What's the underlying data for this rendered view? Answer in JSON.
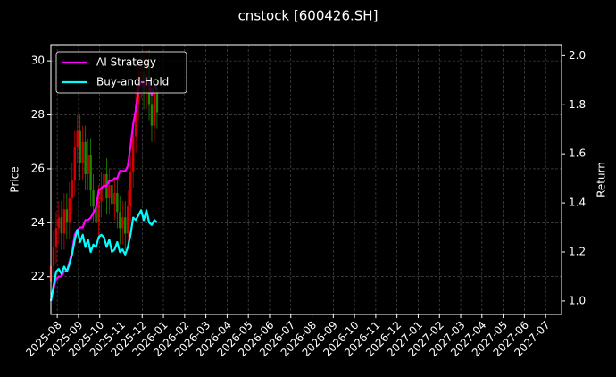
{
  "chart_data": {
    "type": "candlestick",
    "title": "cnstock [600426.SH]",
    "ylabel": "Price",
    "y2label": "Return",
    "x": [
      -0.3,
      -0.175,
      -0.05,
      0.075,
      0.2,
      0.325,
      0.45,
      0.575,
      0.7,
      0.825,
      0.95,
      1.075,
      1.2,
      1.325,
      1.45,
      1.575,
      1.7,
      1.825,
      1.95,
      2.075,
      2.2,
      2.325,
      2.45,
      2.575,
      2.7,
      2.825,
      2.95,
      3.075,
      3.2,
      3.325,
      3.45,
      3.575,
      3.7,
      3.825,
      3.95,
      4.075,
      4.2,
      4.325,
      4.45,
      4.575,
      4.7
    ],
    "candles": {
      "up_color": "#d40000",
      "down_color": "#1f8a00",
      "open": [
        21.8,
        22.4,
        23.1,
        23.8,
        24.2,
        23.6,
        24.5,
        24.0,
        24.9,
        25.6,
        26.8,
        27.4,
        26.2,
        27.0,
        25.8,
        26.5,
        25.2,
        24.6,
        24.0,
        24.8,
        25.3,
        25.8,
        24.9,
        25.4,
        24.7,
        25.1,
        24.4,
        23.8,
        24.2,
        23.6,
        24.6,
        25.9,
        27.2,
        28.4,
        29.2,
        29.6,
        28.8,
        29.8,
        28.4,
        27.6,
        28.9
      ],
      "high": [
        23.0,
        23.7,
        24.4,
        24.8,
        24.8,
        25.1,
        25.1,
        25.5,
        26.2,
        27.4,
        28.0,
        28.0,
        27.6,
        27.6,
        27.1,
        27.1,
        25.8,
        25.2,
        25.4,
        25.9,
        26.4,
        26.4,
        26.0,
        26.0,
        25.7,
        25.7,
        25.0,
        24.8,
        24.8,
        25.2,
        26.5,
        27.8,
        29.0,
        29.8,
        30.2,
        30.2,
        30.4,
        30.4,
        29.0,
        29.5,
        29.5
      ],
      "low": [
        21.2,
        21.8,
        22.5,
        23.2,
        23.0,
        23.0,
        23.4,
        23.4,
        24.3,
        25.0,
        26.2,
        25.6,
        25.6,
        25.2,
        25.2,
        24.6,
        24.0,
        23.4,
        23.4,
        24.2,
        24.7,
        24.3,
        24.3,
        24.1,
        24.1,
        23.8,
        23.2,
        23.2,
        23.0,
        23.0,
        24.0,
        25.3,
        26.6,
        27.8,
        28.6,
        28.2,
        28.2,
        27.8,
        27.0,
        27.0,
        27.5
      ],
      "close": [
        22.4,
        23.1,
        23.8,
        24.2,
        23.6,
        24.5,
        24.0,
        24.9,
        25.6,
        26.8,
        27.4,
        26.2,
        27.0,
        25.8,
        26.5,
        25.2,
        24.6,
        24.0,
        24.8,
        25.3,
        25.8,
        24.9,
        25.4,
        24.7,
        25.1,
        24.4,
        23.8,
        24.2,
        23.6,
        24.6,
        25.9,
        27.2,
        28.4,
        29.2,
        29.6,
        28.8,
        29.8,
        28.4,
        27.6,
        28.9,
        28.1
      ]
    },
    "series": [
      {
        "name": "AI Strategy",
        "color": "#ff00ff",
        "axis": "y2",
        "values": [
          1.0,
          1.05,
          1.09,
          1.1,
          1.1,
          1.12,
          1.12,
          1.16,
          1.2,
          1.27,
          1.29,
          1.3,
          1.3,
          1.33,
          1.33,
          1.34,
          1.36,
          1.38,
          1.45,
          1.46,
          1.47,
          1.47,
          1.49,
          1.49,
          1.5,
          1.5,
          1.53,
          1.53,
          1.53,
          1.55,
          1.63,
          1.72,
          1.78,
          1.86,
          1.9,
          1.87,
          1.92,
          1.88,
          1.84,
          1.88,
          1.86
        ]
      },
      {
        "name": "Buy-and-Hold",
        "color": "#00ffff",
        "axis": "y2",
        "values": [
          1.0,
          1.06,
          1.12,
          1.13,
          1.11,
          1.14,
          1.12,
          1.15,
          1.19,
          1.25,
          1.29,
          1.24,
          1.27,
          1.22,
          1.25,
          1.2,
          1.23,
          1.22,
          1.26,
          1.27,
          1.26,
          1.22,
          1.25,
          1.2,
          1.21,
          1.24,
          1.2,
          1.21,
          1.19,
          1.22,
          1.27,
          1.34,
          1.33,
          1.35,
          1.37,
          1.33,
          1.37,
          1.32,
          1.31,
          1.33,
          1.32
        ]
      }
    ],
    "xlim": [
      -0.3,
      23.75
    ],
    "xticks": [
      {
        "value": 0,
        "label": "2025-08"
      },
      {
        "value": 1,
        "label": "2025-09"
      },
      {
        "value": 2,
        "label": "2025-10"
      },
      {
        "value": 3,
        "label": "2025-11"
      },
      {
        "value": 4,
        "label": "2025-12"
      },
      {
        "value": 5,
        "label": "2026-01"
      },
      {
        "value": 6,
        "label": "2026-02"
      },
      {
        "value": 7,
        "label": "2026-03"
      },
      {
        "value": 8,
        "label": "2026-04"
      },
      {
        "value": 9,
        "label": "2026-05"
      },
      {
        "value": 10,
        "label": "2026-06"
      },
      {
        "value": 11,
        "label": "2026-07"
      },
      {
        "value": 12,
        "label": "2026-08"
      },
      {
        "value": 13,
        "label": "2026-09"
      },
      {
        "value": 14,
        "label": "2026-10"
      },
      {
        "value": 15,
        "label": "2026-11"
      },
      {
        "value": 16,
        "label": "2026-12"
      },
      {
        "value": 17,
        "label": "2027-01"
      },
      {
        "value": 18,
        "label": "2027-02"
      },
      {
        "value": 19,
        "label": "2027-03"
      },
      {
        "value": 20,
        "label": "2027-04"
      },
      {
        "value": 21,
        "label": "2027-05"
      },
      {
        "value": 22,
        "label": "2027-06"
      },
      {
        "value": 23,
        "label": "2027-07"
      }
    ],
    "ylim": [
      20.6,
      30.6
    ],
    "yticks": [
      22,
      24,
      26,
      28,
      30
    ],
    "y2lim": [
      0.945,
      2.045
    ],
    "y2ticks": [
      {
        "value": 1.0,
        "label": "1.0"
      },
      {
        "value": 1.2,
        "label": "1.2"
      },
      {
        "value": 1.4,
        "label": "1.4"
      },
      {
        "value": 1.6,
        "label": "1.6"
      },
      {
        "value": 1.8,
        "label": "1.8"
      },
      {
        "value": 2.0,
        "label": "2.0"
      }
    ],
    "grid": true,
    "legend": "upper left"
  }
}
